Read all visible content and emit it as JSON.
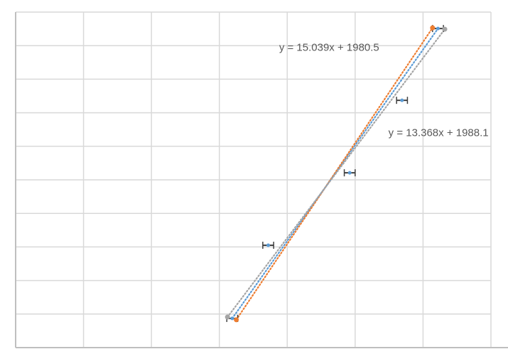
{
  "chart_data": {
    "type": "scatter",
    "title": "",
    "xlabel": "",
    "ylabel": "",
    "xlim": [
      0,
      7
    ],
    "ylim": [
      0,
      10
    ],
    "grid": true,
    "tick_labels_visible": false,
    "series": [
      {
        "color": "#5B9BD5",
        "points": [
          [
            3.19,
            0.87
          ],
          [
            3.72,
            3.05
          ],
          [
            4.92,
            5.21
          ],
          [
            5.69,
            7.37
          ],
          [
            6.22,
            9.51
          ]
        ],
        "x_error": 0.08,
        "trendline": "linear-dotted"
      },
      {
        "color": "#ED7D31",
        "points": [
          [
            3.25,
            0.83
          ],
          [
            6.14,
            9.53
          ]
        ],
        "trendline": "linear-dotted"
      },
      {
        "color": "#A5A5A5",
        "points": [
          [
            3.12,
            0.91
          ],
          [
            6.32,
            9.49
          ]
        ],
        "trendline": "linear-dotted"
      }
    ],
    "annotations": [
      {
        "text": "y = 15.039x + 1980.5",
        "x": 3.88,
        "y": 8.85
      },
      {
        "text": "y = 13.368x + 1988.1",
        "x": 5.49,
        "y": 6.3
      }
    ],
    "colors": {
      "grid": "#D9D9D9",
      "axis": "#BFBFBF",
      "error_bar": "#404040",
      "annotation": "#595959"
    }
  }
}
